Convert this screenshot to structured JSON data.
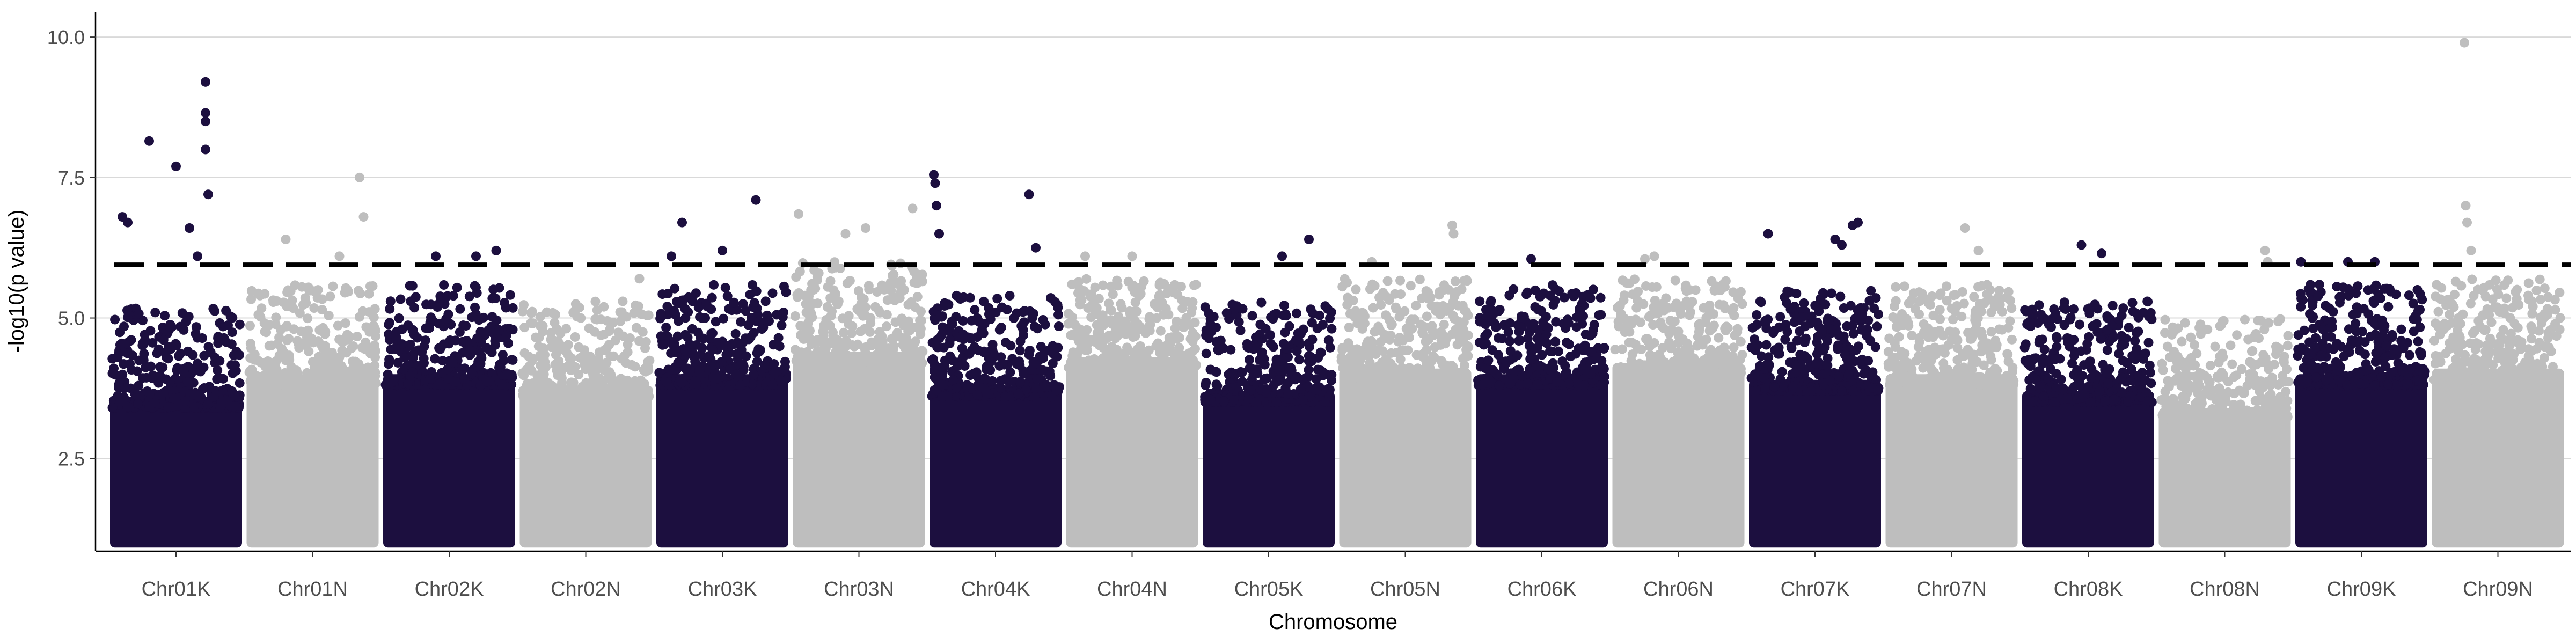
{
  "chart_data": {
    "type": "scatter",
    "title": "",
    "xlabel": "Chromosome",
    "ylabel": "-log10(p value)",
    "ylim": [
      0.85,
      10.45
    ],
    "y_ticks": [
      2.5,
      5.0,
      7.5,
      10.0
    ],
    "y_tick_labels": [
      "2.5",
      "5.0",
      "7.5",
      "10.0"
    ],
    "grid": "horizontal major",
    "legend": "none",
    "threshold": 5.95,
    "threshold_style": "dashed",
    "colors": {
      "odd": "#1c0f3f",
      "even": "#bebebe",
      "threshold": "#000000",
      "grid": "#d9d9d9"
    },
    "min_value": 1.0,
    "categories": [
      "Chr01K",
      "Chr01N",
      "Chr02K",
      "Chr02N",
      "Chr03K",
      "Chr03N",
      "Chr04K",
      "Chr04N",
      "Chr05K",
      "Chr05N",
      "Chr06K",
      "Chr06N",
      "Chr07K",
      "Chr07N",
      "Chr08K",
      "Chr08N",
      "Chr09K",
      "Chr09N"
    ],
    "series": [
      {
        "category": "Chr01K",
        "max": 9.2,
        "dense_top": 3.6,
        "peaks": [
          [
            0.1,
            6.8
          ],
          [
            0.14,
            6.7
          ],
          [
            0.3,
            8.15
          ],
          [
            0.5,
            7.7
          ],
          [
            0.6,
            6.6
          ],
          [
            0.66,
            6.1
          ],
          [
            0.72,
            9.2
          ],
          [
            0.72,
            8.65
          ],
          [
            0.72,
            8.5
          ],
          [
            0.72,
            8.0
          ],
          [
            0.74,
            7.2
          ]
        ]
      },
      {
        "category": "Chr01N",
        "max": 7.5,
        "dense_top": 4.0,
        "peaks": [
          [
            0.3,
            6.4
          ],
          [
            0.7,
            6.1
          ],
          [
            0.85,
            7.5
          ],
          [
            0.88,
            6.8
          ]
        ]
      },
      {
        "category": "Chr02K",
        "max": 6.2,
        "dense_top": 4.0,
        "peaks": [
          [
            0.4,
            6.1
          ],
          [
            0.7,
            6.1
          ],
          [
            0.85,
            6.2
          ]
        ]
      },
      {
        "category": "Chr02N",
        "max": 5.7,
        "dense_top": 3.8,
        "peaks": [
          [
            0.9,
            5.7
          ]
        ]
      },
      {
        "category": "Chr03K",
        "max": 7.1,
        "dense_top": 4.0,
        "peaks": [
          [
            0.12,
            6.1
          ],
          [
            0.2,
            6.7
          ],
          [
            0.5,
            6.2
          ],
          [
            0.75,
            7.1
          ]
        ]
      },
      {
        "category": "Chr03N",
        "max": 6.95,
        "dense_top": 4.4,
        "peaks": [
          [
            0.05,
            6.85
          ],
          [
            0.4,
            6.5
          ],
          [
            0.55,
            6.6
          ],
          [
            0.9,
            6.95
          ]
        ]
      },
      {
        "category": "Chr04K",
        "max": 7.55,
        "dense_top": 3.8,
        "peaks": [
          [
            0.04,
            7.55
          ],
          [
            0.05,
            7.4
          ],
          [
            0.06,
            7.0
          ],
          [
            0.08,
            6.5
          ],
          [
            0.75,
            7.2
          ],
          [
            0.8,
            6.25
          ]
        ]
      },
      {
        "category": "Chr04N",
        "max": 6.1,
        "dense_top": 4.3,
        "peaks": [
          [
            0.15,
            6.1
          ],
          [
            0.5,
            6.1
          ]
        ]
      },
      {
        "category": "Chr05K",
        "max": 6.4,
        "dense_top": 3.7,
        "peaks": [
          [
            0.6,
            6.1
          ],
          [
            0.8,
            6.4
          ]
        ]
      },
      {
        "category": "Chr05N",
        "max": 6.65,
        "dense_top": 4.1,
        "peaks": [
          [
            0.25,
            6.0
          ],
          [
            0.85,
            6.65
          ],
          [
            0.86,
            6.5
          ]
        ]
      },
      {
        "category": "Chr06K",
        "max": 6.05,
        "dense_top": 4.0,
        "peaks": [
          [
            0.42,
            6.05
          ]
        ]
      },
      {
        "category": "Chr06N",
        "max": 6.1,
        "dense_top": 4.2,
        "peaks": [
          [
            0.25,
            6.05
          ],
          [
            0.32,
            6.1
          ]
        ]
      },
      {
        "category": "Chr07K",
        "max": 6.7,
        "dense_top": 3.9,
        "peaks": [
          [
            0.15,
            6.5
          ],
          [
            0.65,
            6.4
          ],
          [
            0.7,
            6.3
          ],
          [
            0.78,
            6.65
          ],
          [
            0.82,
            6.7
          ]
        ]
      },
      {
        "category": "Chr07N",
        "max": 6.6,
        "dense_top": 4.0,
        "peaks": [
          [
            0.6,
            6.6
          ],
          [
            0.7,
            6.2
          ]
        ]
      },
      {
        "category": "Chr08K",
        "max": 6.3,
        "dense_top": 3.7,
        "peaks": [
          [
            0.45,
            6.3
          ],
          [
            0.6,
            6.15
          ]
        ]
      },
      {
        "category": "Chr08N",
        "max": 6.2,
        "dense_top": 3.4,
        "peaks": [
          [
            0.8,
            6.2
          ],
          [
            0.82,
            6.0
          ]
        ]
      },
      {
        "category": "Chr09K",
        "max": 6.0,
        "dense_top": 4.0,
        "peaks": [
          [
            0.05,
            6.0
          ],
          [
            0.4,
            6.0
          ],
          [
            0.6,
            6.0
          ]
        ]
      },
      {
        "category": "Chr09N",
        "max": 9.9,
        "dense_top": 4.1,
        "peaks": [
          [
            0.25,
            9.9
          ],
          [
            0.26,
            7.0
          ],
          [
            0.27,
            6.7
          ],
          [
            0.3,
            6.2
          ]
        ]
      }
    ]
  }
}
